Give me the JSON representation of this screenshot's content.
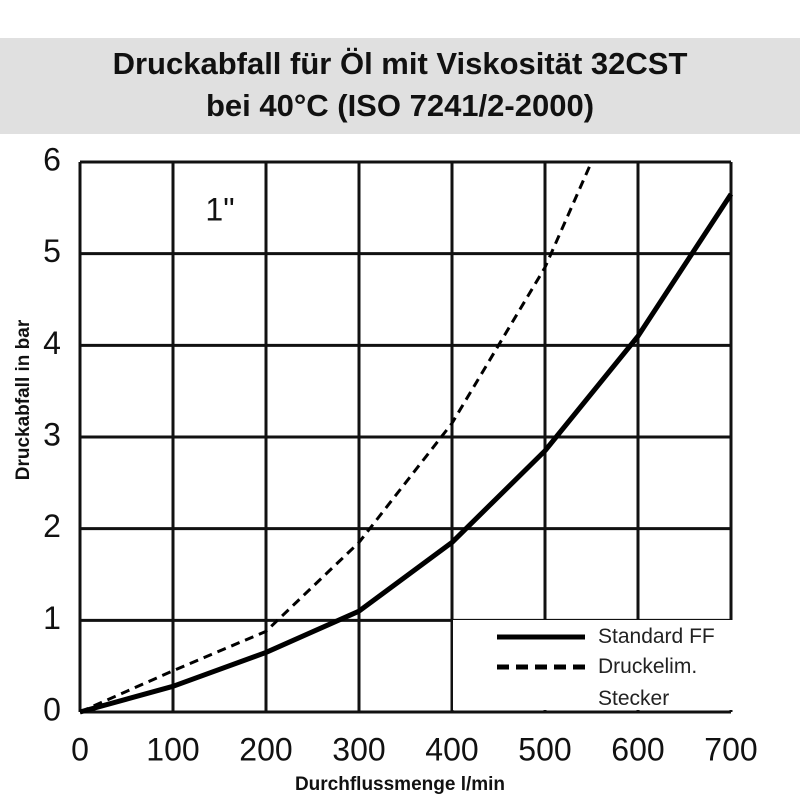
{
  "chart_data": {
    "type": "line",
    "title": "Druckabfall für Öl mit Viskosität 32CST",
    "subtitle": "bei 40°C (ISO 7241/2-2000)",
    "annotation": "1\"",
    "x_label": "Durchflussmenge l/min",
    "y_label": "Druckabfall in bar",
    "xlim": [
      0,
      700
    ],
    "xticks": [
      0,
      100,
      200,
      300,
      400,
      500,
      600,
      700
    ],
    "ylim": [
      0,
      6
    ],
    "yticks": [
      0,
      1,
      2,
      3,
      4,
      5,
      6
    ],
    "grid": true,
    "legend": "lower right",
    "series": [
      {
        "name": "Standard FF",
        "color": "#000000",
        "line_style": "solid",
        "x": [
          0,
          100,
          200,
          300,
          400,
          500,
          600,
          700
        ],
        "values": [
          0,
          0.28,
          0.65,
          1.1,
          1.85,
          2.85,
          4.1,
          5.65
        ]
      },
      {
        "name": "Druckelim.\nStecker",
        "color": "#000000",
        "line_style": "dashed",
        "x": [
          0,
          100,
          200,
          300,
          400,
          500,
          550
        ],
        "values": [
          0,
          0.45,
          0.88,
          1.85,
          3.15,
          4.85,
          6
        ]
      }
    ]
  }
}
